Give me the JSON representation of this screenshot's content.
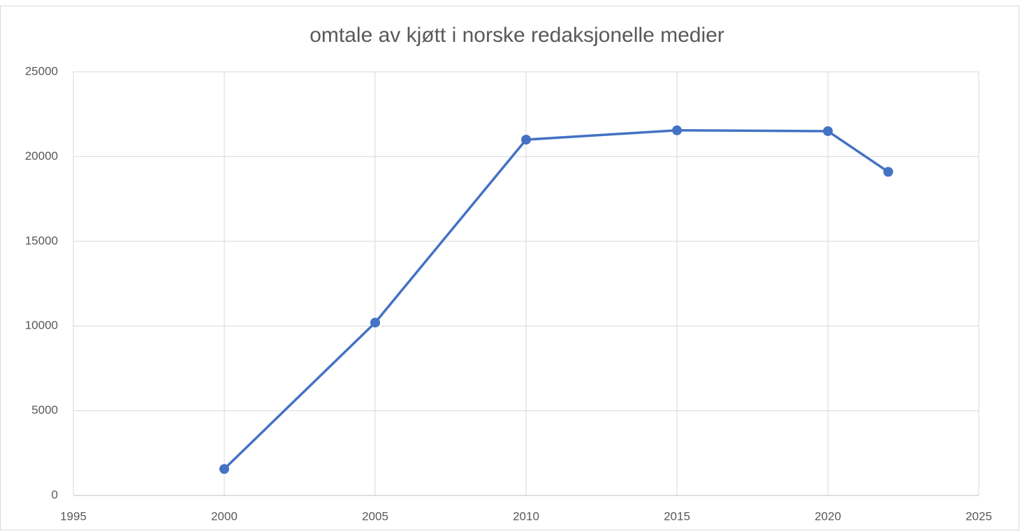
{
  "chart_data": {
    "type": "line",
    "title": "omtale av kjøtt i norske redaksjonelle medier",
    "x": [
      2000,
      2005,
      2010,
      2015,
      2020,
      2022
    ],
    "series": [
      {
        "color": "#4472c4",
        "values": [
          1560,
          10200,
          21000,
          21550,
          21500,
          19100
        ]
      }
    ],
    "xlim": [
      1995,
      2025
    ],
    "xticks": [
      1995,
      2000,
      2005,
      2010,
      2015,
      2020,
      2025
    ],
    "ylim": [
      0,
      25000
    ],
    "yticks": [
      0,
      5000,
      10000,
      15000,
      20000,
      25000
    ],
    "grid": true
  }
}
